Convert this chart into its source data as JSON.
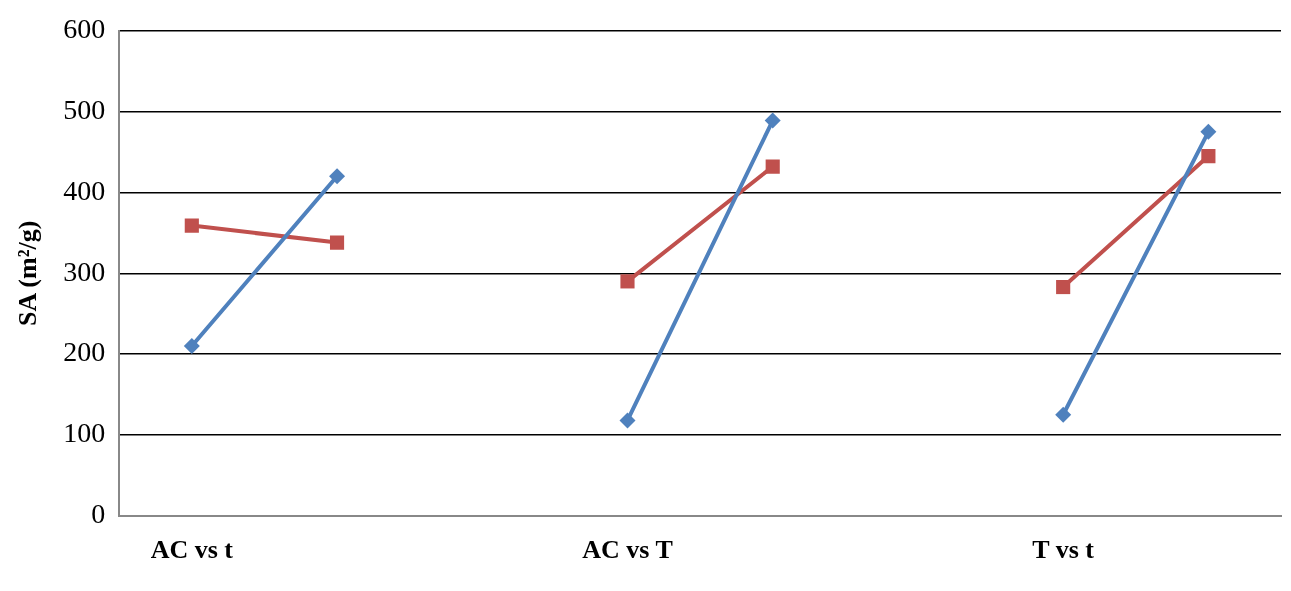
{
  "chart_data": {
    "type": "line",
    "ylabel": "SA (m²/g)",
    "categories": [
      "AC vs t",
      null,
      null,
      "AC vs T",
      null,
      null,
      "T vs t",
      null
    ],
    "series": [
      {
        "color": "#4f81bd",
        "marker": "diamond",
        "values": [
          210,
          420,
          null,
          118,
          489,
          null,
          125,
          475
        ]
      },
      {
        "color": "#c0504d",
        "marker": "square",
        "values": [
          359,
          338,
          null,
          290,
          432,
          null,
          283,
          445
        ]
      }
    ],
    "ylim": [
      0,
      600
    ],
    "yticks": [
      0,
      100,
      200,
      300,
      400,
      500,
      600
    ],
    "grid": "y",
    "legend": false
  }
}
